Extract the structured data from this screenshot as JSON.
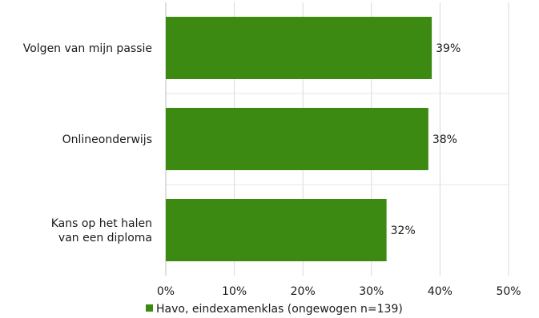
{
  "chart_data": {
    "type": "bar",
    "orientation": "horizontal",
    "categories": [
      [
        "Volgen van mijn passie"
      ],
      [
        "Onlineonderwijs"
      ],
      [
        "Kans op het halen",
        "van een diploma"
      ]
    ],
    "series": [
      {
        "name": "Havo, eindexamenklas (ongewogen n=139)",
        "values": [
          38.8,
          38.3,
          32.2
        ],
        "labels": [
          "39%",
          "38%",
          "32%"
        ],
        "color": "#3c8a12"
      }
    ],
    "xticks": [
      0,
      10,
      20,
      30,
      40,
      50
    ],
    "xtick_labels": [
      "0%",
      "10%",
      "20%",
      "30%",
      "40%",
      "50%"
    ],
    "xlim": [
      0,
      50
    ],
    "grid": "vertical",
    "legend": "bottom"
  }
}
